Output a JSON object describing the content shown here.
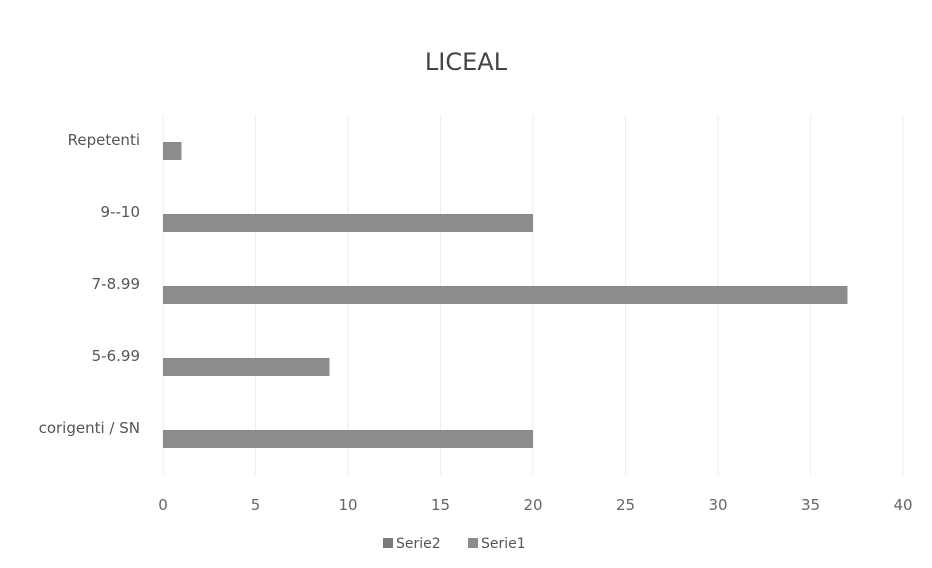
{
  "chart_data": {
    "type": "bar",
    "orientation": "horizontal",
    "title": "LICEAL",
    "xlabel": "",
    "ylabel": "",
    "categories": [
      "corigenti / SN",
      "5-6.99",
      "7-8.99",
      "9--10",
      "Repetenti"
    ],
    "series": [
      {
        "name": "Serie2",
        "values": [
          0,
          0,
          0,
          0,
          0
        ],
        "color": "#7a7a7a"
      },
      {
        "name": "Serie1",
        "values": [
          20,
          9,
          37,
          20,
          1
        ],
        "color": "#8c8c8c"
      }
    ],
    "xlim": [
      0,
      40
    ],
    "xticks": [
      "0",
      "5",
      "10",
      "15",
      "20",
      "25",
      "30",
      "35",
      "40"
    ],
    "grid": true,
    "legend_position": "bottom"
  }
}
